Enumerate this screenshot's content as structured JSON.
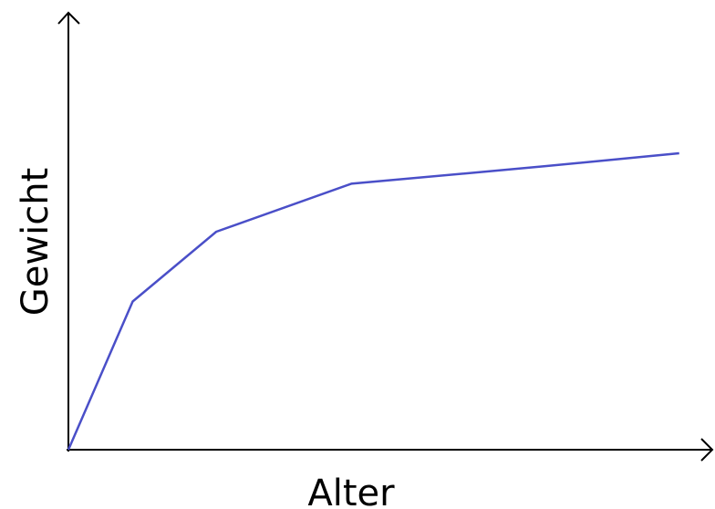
{
  "chart_data": {
    "type": "line",
    "x_label": "Alter",
    "y_label": "Gewicht",
    "x": [
      0,
      10,
      23,
      44,
      74,
      95
    ],
    "series": [
      {
        "color": "#4a4fc8",
        "values": [
          0,
          34,
          50,
          61,
          65,
          68
        ]
      }
    ],
    "xlim": [
      0,
      100
    ],
    "ylim": [
      0,
      100
    ],
    "grid": false
  }
}
